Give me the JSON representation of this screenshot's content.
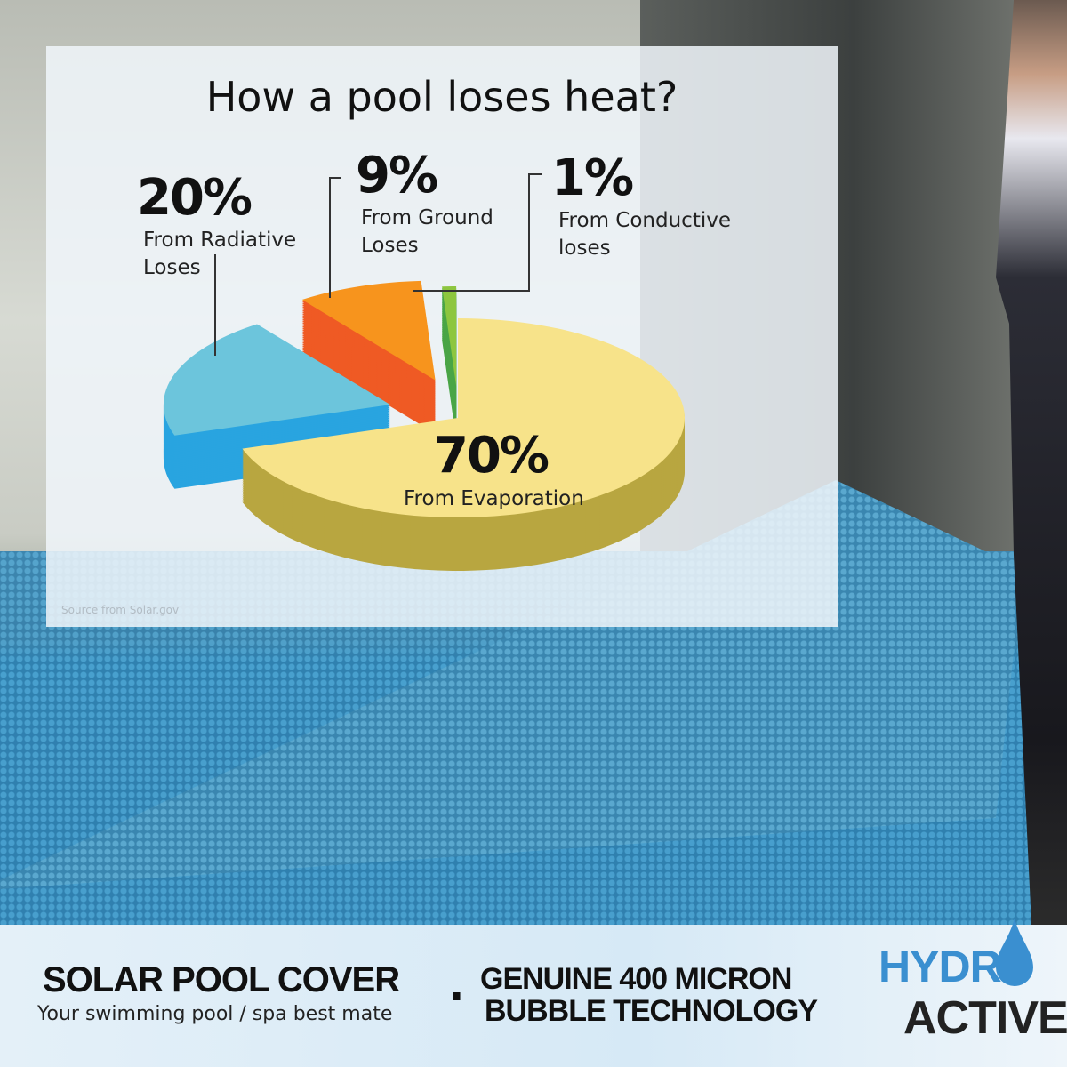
{
  "chart_data": {
    "type": "pie",
    "title": "How a pool loses heat?",
    "slices": [
      {
        "label": "From Evaporation",
        "value": 70,
        "display": "70%",
        "color": "#f7e38a",
        "side": "#b8a640"
      },
      {
        "label": "From Radiative\nLoses",
        "value": 20,
        "display": "20%",
        "color": "#6cc5dc",
        "side": "#29a4e0"
      },
      {
        "label": "From Ground\nLoses",
        "value": 9,
        "display": "9%",
        "color": "#f7941d",
        "side": "#ef5a24"
      },
      {
        "label": "From Conductive\nloses",
        "value": 1,
        "display": "1%",
        "color": "#8dc63f",
        "side": "#4aa547"
      }
    ],
    "style": "3d-exploded",
    "source": "Source from Solar.gov"
  },
  "banner": {
    "headline": "SOLAR POOL COVER",
    "tagline": "Your swimming pool / spa best mate",
    "separator": ".",
    "feature_line1": "GENUINE 400 MICRON",
    "feature_line2": "BUBBLE TECHNOLOGY"
  },
  "logo": {
    "line1": "HYDR",
    "line2": "ACTIVE",
    "colors": {
      "blue": "#3a8fd0",
      "dark": "#222222"
    }
  }
}
